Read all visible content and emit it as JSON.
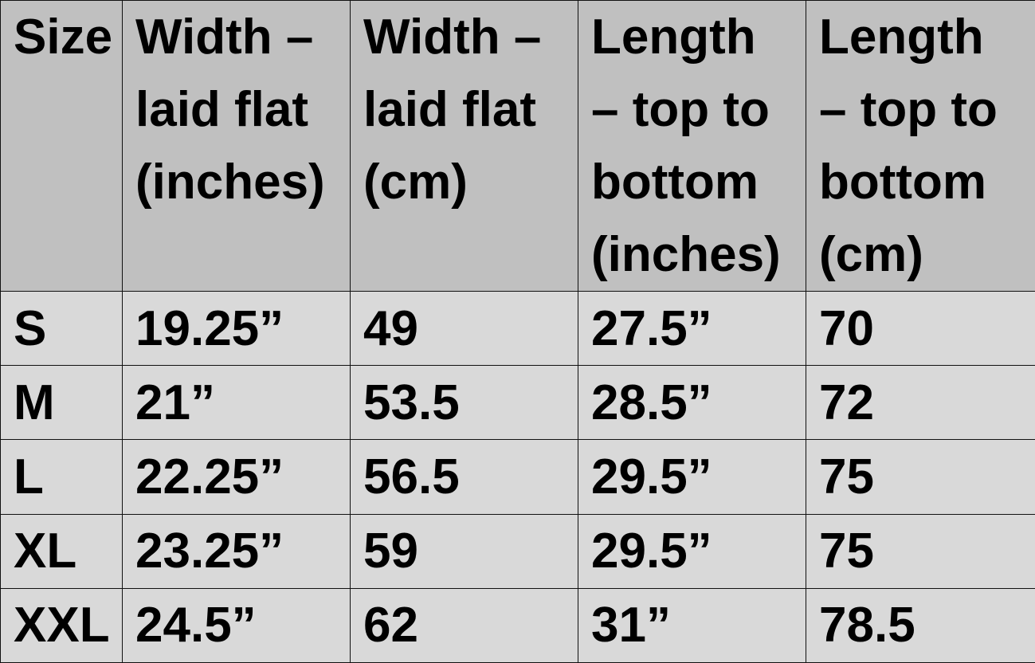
{
  "table": {
    "headers": [
      [
        "Size"
      ],
      [
        "Width –",
        "laid flat",
        "(inches)"
      ],
      [
        "Width –",
        "laid flat",
        "(cm)"
      ],
      [
        "Length",
        "– top to",
        "bottom",
        "(inches)"
      ],
      [
        "Length",
        "– top to",
        "bottom",
        "(cm)"
      ]
    ],
    "rows": [
      [
        "S",
        "19.25”",
        "49",
        "27.5”",
        "70"
      ],
      [
        "M",
        "21”",
        "53.5",
        "28.5”",
        "72"
      ],
      [
        "L",
        "22.25”",
        "56.5",
        "29.5”",
        "75"
      ],
      [
        "XL",
        "23.25”",
        "59",
        "29.5”",
        "75"
      ],
      [
        "XXL",
        "24.5”",
        "62",
        "31”",
        "78.5"
      ]
    ]
  },
  "colors": {
    "header_bg": "#c0c0c0",
    "body_bg": "#d9d9d9",
    "border": "#111111"
  }
}
